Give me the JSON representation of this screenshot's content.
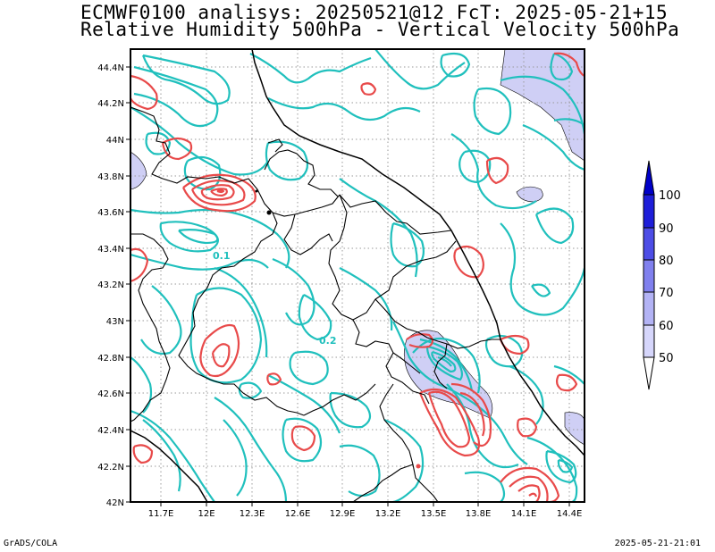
{
  "title_line1": "ECMWF0100 analisys: 20250521@12 FcT: 2025-05-21+15",
  "title_line2": "Relative Humidity 500hPa - Vertical Velocity 500hPa",
  "footer": {
    "left": "GrADS/COLA",
    "right": "2025-05-21-21:01"
  },
  "map": {
    "lon_ticks": [
      "11.7E",
      "12E",
      "12.3E",
      "12.6E",
      "12.9E",
      "13.2E",
      "13.5E",
      "13.8E",
      "14.1E",
      "14.4E"
    ],
    "lat_ticks": [
      "42N",
      "42.2N",
      "42.4N",
      "42.6N",
      "42.8N",
      "43N",
      "43.2N",
      "43.4N",
      "43.6N",
      "43.8N",
      "44N",
      "44.2N",
      "44.4N"
    ],
    "contour_labels": [
      "0.1",
      "0.2"
    ]
  },
  "colorbar": {
    "labels": [
      "50",
      "60",
      "70",
      "80",
      "90",
      "100"
    ],
    "colors": [
      "#ffffff",
      "#d6d6fb",
      "#b3b3f5",
      "#8080ee",
      "#4d4de6",
      "#1e1ed9",
      "#0000c8"
    ]
  },
  "colors": {
    "upward_contour": "#20c0bd",
    "downward_contour": "#e84a4a",
    "humidity_fill": "#cfcff5"
  }
}
